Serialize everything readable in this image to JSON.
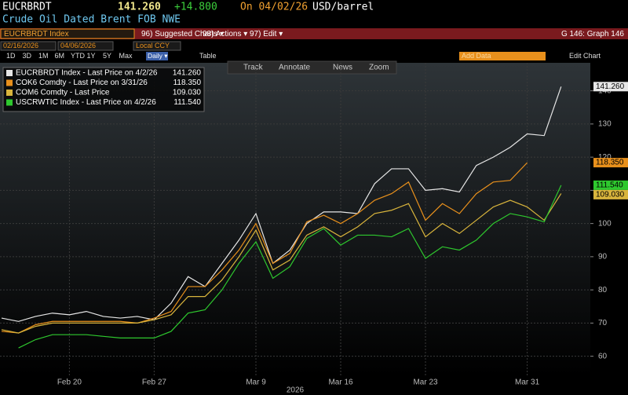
{
  "header": {
    "ticker": "EUCRBRDT",
    "price": "141.260",
    "change": "+14.800",
    "date": "On 04/02/26",
    "unit": "USD/barrel",
    "description": "Crude Oil Dated Brent FOB NWE"
  },
  "menu": {
    "security": "EUCRBRDT Index",
    "items": [
      "96) Suggested Charts ▾",
      "98) Actions ▾",
      "97) Edit ▾"
    ],
    "graph": "G 146: Graph 146"
  },
  "range": {
    "start": "02/16/2026",
    "end": "04/06/2026",
    "currency": "Local CCY",
    "add_data": "Add Data",
    "edit_chart": "Edit Chart"
  },
  "periods": [
    "1D",
    "3D",
    "1M",
    "6M",
    "YTD",
    "1Y",
    "5Y",
    "Max"
  ],
  "frequency": "Daily ▾",
  "table": "Table",
  "tools": [
    "Track",
    "Annotate",
    "News",
    "Zoom"
  ],
  "chart_data": {
    "type": "line",
    "xlabel": "2026",
    "categories": [
      null,
      null,
      null,
      null,
      "Feb 20",
      null,
      null,
      null,
      null,
      "Feb 27",
      null,
      null,
      null,
      null,
      null,
      "Mar 9",
      null,
      null,
      null,
      null,
      "Mar 16",
      null,
      null,
      null,
      null,
      "Mar 23",
      null,
      null,
      null,
      null,
      null,
      "Mar 31",
      null,
      null
    ],
    "ylim": [
      54,
      145
    ],
    "yticks": [
      60,
      70,
      80,
      90,
      100,
      110,
      120,
      130,
      140
    ],
    "grid": true,
    "legend": "upper left",
    "series": [
      {
        "name": "EUCRBRDT Index - Last Price on 4/2/26",
        "color": "#e6e6e6",
        "values": [
          71.5,
          70.5,
          72,
          73,
          72.5,
          73.5,
          72,
          71.5,
          72,
          71,
          76,
          84,
          81,
          88,
          95,
          103,
          88,
          92,
          100,
          103.5,
          103.5,
          103,
          112,
          116.5,
          116.5,
          110,
          110.5,
          109.5,
          117.5,
          120,
          123,
          127,
          126.5,
          141.26
        ],
        "value_labels": [
          null,
          null,
          null,
          null,
          null,
          null,
          null,
          null,
          null,
          null,
          null,
          null,
          null,
          null,
          null,
          null,
          null,
          null,
          null,
          null,
          null,
          null,
          null,
          null,
          null,
          null,
          null,
          null,
          null,
          null,
          null,
          null,
          null,
          "141.260"
        ]
      },
      {
        "name": "COK6 Comdty - Last Price on 3/31/26",
        "color": "#e8901c",
        "values": [
          67.5,
          67,
          69.5,
          70.5,
          70.5,
          70.5,
          70.5,
          70.5,
          70,
          71.5,
          73.5,
          81,
          81,
          86,
          92,
          100,
          88,
          91,
          100.5,
          102.5,
          100,
          103,
          107,
          109,
          112.5,
          101,
          106,
          103,
          109,
          112.5,
          113,
          118.35,
          null,
          null
        ],
        "value_labels": [
          null,
          null,
          null,
          null,
          null,
          null,
          null,
          null,
          null,
          null,
          null,
          null,
          null,
          null,
          null,
          null,
          null,
          null,
          null,
          null,
          null,
          null,
          null,
          null,
          null,
          null,
          null,
          null,
          null,
          null,
          null,
          "118.350",
          null,
          null
        ]
      },
      {
        "name": "COM6 Comdty - Last Price",
        "color": "#d8b43c",
        "values": [
          68,
          67,
          69,
          70,
          70,
          70,
          70,
          70,
          70,
          71,
          72.5,
          78,
          78,
          83,
          90,
          98,
          86,
          89,
          96.5,
          99,
          96,
          99,
          103,
          104,
          106,
          96,
          100,
          97,
          101,
          105,
          107,
          105,
          101,
          109.03
        ],
        "value_labels": [
          null,
          null,
          null,
          null,
          null,
          null,
          null,
          null,
          null,
          null,
          null,
          null,
          null,
          null,
          null,
          null,
          null,
          null,
          null,
          null,
          null,
          null,
          null,
          null,
          null,
          null,
          null,
          null,
          null,
          null,
          null,
          null,
          null,
          "109.030"
        ]
      },
      {
        "name": "USCRWTIC Index - Last Price on 4/2/26",
        "color": "#2ec82e",
        "values": [
          null,
          62.5,
          65,
          66.5,
          66.5,
          66.5,
          66,
          65.5,
          65.5,
          65.5,
          67.5,
          73,
          74,
          80,
          88,
          94.5,
          83.5,
          87,
          95.5,
          98.5,
          93.5,
          96.5,
          96.5,
          96,
          98.5,
          89.5,
          93,
          92,
          95,
          100,
          103,
          102,
          100.5,
          111.54
        ],
        "value_labels": [
          null,
          null,
          null,
          null,
          null,
          null,
          null,
          null,
          null,
          null,
          null,
          null,
          null,
          null,
          null,
          null,
          null,
          null,
          null,
          null,
          null,
          null,
          null,
          null,
          null,
          null,
          null,
          null,
          null,
          null,
          null,
          null,
          null,
          "111.540"
        ]
      }
    ]
  }
}
